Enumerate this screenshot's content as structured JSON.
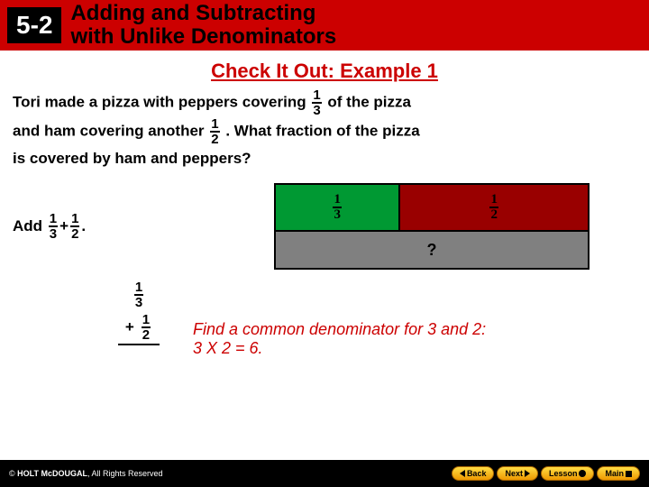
{
  "header": {
    "chapter": "5-2",
    "title_line1": "Adding and Subtracting",
    "title_line2": "with Unlike Denominators"
  },
  "example": {
    "title": "Check It Out: Example 1",
    "text_a": "Tori made a pizza with peppers covering ",
    "frac1": {
      "num": "1",
      "den": "3"
    },
    "text_b": " of the pizza",
    "text_c": "and ham covering another ",
    "frac2": {
      "num": "1",
      "den": "2"
    },
    "text_d": ". What fraction of the pizza",
    "text_e": "is covered by ham and peppers?"
  },
  "add_instruction": {
    "prefix": "Add ",
    "f1": {
      "num": "1",
      "den": "3"
    },
    "plus": "+",
    "f2": {
      "num": "1",
      "den": "2"
    },
    "suffix": "."
  },
  "table": {
    "left": {
      "num": "1",
      "den": "3"
    },
    "right": {
      "num": "1",
      "den": "2"
    },
    "bottom": "?",
    "colors": {
      "left_bg": "#009933",
      "right_bg": "#990000",
      "bottom_bg": "#808080",
      "border": "#000000"
    }
  },
  "vertical": {
    "top": {
      "num": "1",
      "den": "3"
    },
    "bottom": {
      "num": "1",
      "den": "2"
    },
    "op": "+"
  },
  "hint": {
    "line1": "Find a common denominator for 3 and 2:",
    "line2": "3 X 2 = 6."
  },
  "footer": {
    "brand": "HOLT McDOUGAL",
    "copyright": ", All Rights Reserved",
    "buttons": {
      "back": "Back",
      "next": "Next",
      "lesson": "Lesson",
      "main": "Main"
    }
  }
}
